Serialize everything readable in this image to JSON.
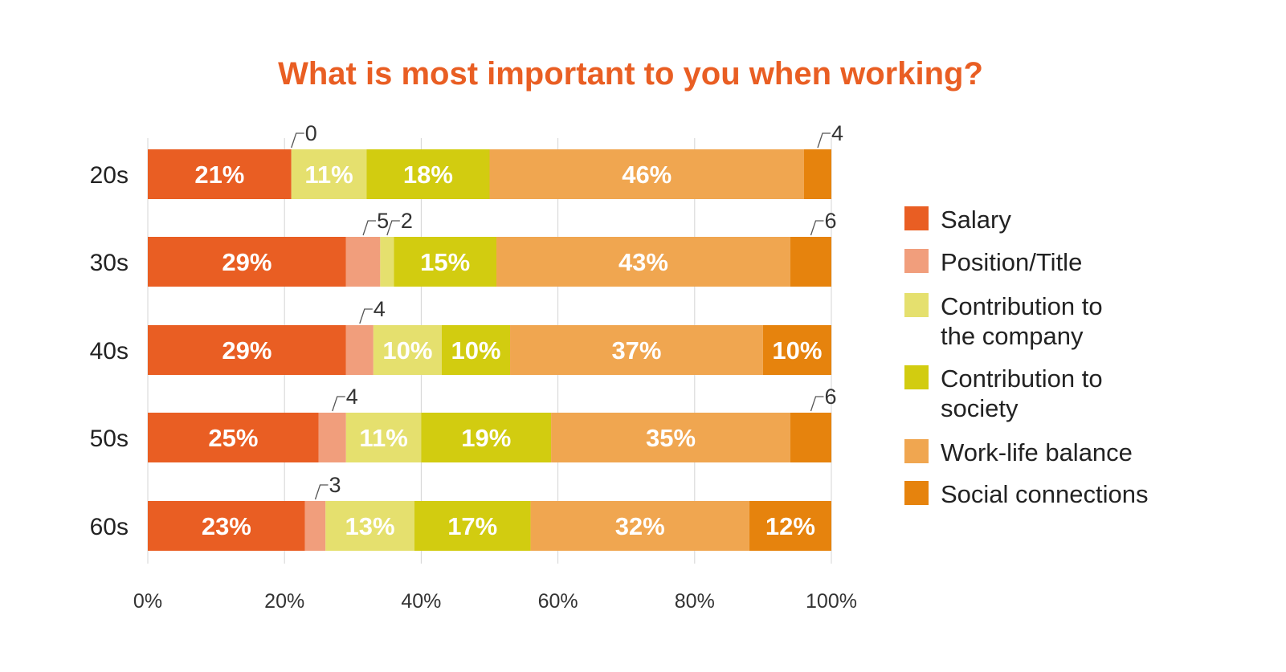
{
  "chart_data": {
    "type": "bar",
    "orientation": "horizontal",
    "stacked": true,
    "title": "What is most important to you when working?",
    "categories": [
      "20s",
      "30s",
      "40s",
      "50s",
      "60s"
    ],
    "series": [
      {
        "name": "Salary",
        "color": "#e95e23",
        "values": [
          21,
          29,
          29,
          25,
          23
        ],
        "labels": [
          "21%",
          "29%",
          "29%",
          "25%",
          "23%"
        ]
      },
      {
        "name": "Position/Title",
        "color": "#f19e7c",
        "values": [
          0,
          5,
          4,
          4,
          3
        ],
        "labels": [
          "0",
          "5",
          "4",
          "4",
          "3"
        ]
      },
      {
        "name": "Contribution to the company",
        "color": "#e5e06e",
        "values": [
          11,
          2,
          10,
          11,
          13
        ],
        "labels": [
          "11%",
          "2",
          "10%",
          "11%",
          "13%"
        ]
      },
      {
        "name": "Contribution to society",
        "color": "#d2cc10",
        "values": [
          18,
          15,
          10,
          19,
          17
        ],
        "labels": [
          "18%",
          "15%",
          "10%",
          "19%",
          "17%"
        ]
      },
      {
        "name": "Work-life balance",
        "color": "#f0a650",
        "values": [
          46,
          43,
          37,
          35,
          32
        ],
        "labels": [
          "46%",
          "43%",
          "37%",
          "35%",
          "32%"
        ]
      },
      {
        "name": "Social connections",
        "color": "#e6830d",
        "values": [
          4,
          6,
          10,
          6,
          12
        ],
        "labels": [
          "4",
          "6",
          "10%",
          "6",
          "12%"
        ]
      }
    ],
    "xlim": [
      0,
      100
    ],
    "xticks": [
      "0%",
      "20%",
      "40%",
      "60%",
      "80%",
      "100%"
    ],
    "grid": true,
    "legend_position": "right"
  }
}
